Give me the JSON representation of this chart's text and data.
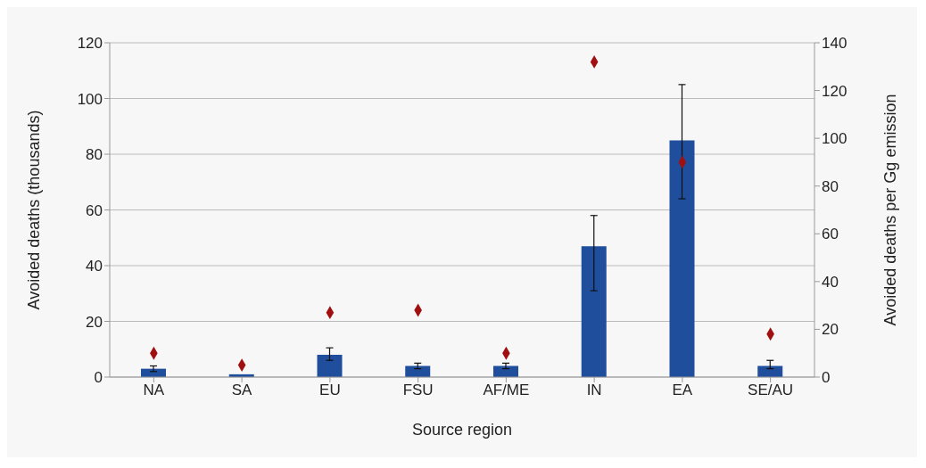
{
  "chart_data": {
    "type": "bar",
    "xlabel": "Source region",
    "ylabel": "Avoided deaths (thousands)",
    "y2label": "Avoided deaths per Gg emission",
    "categories": [
      "NA",
      "SA",
      "EU",
      "FSU",
      "AF/ME",
      "IN",
      "EA",
      "SE/AU"
    ],
    "series": [
      {
        "color": "#1f4e9c",
        "values": [
          3,
          1,
          8,
          4,
          4,
          47,
          85,
          4
        ],
        "errors": [
          [
            2,
            4
          ],
          null,
          [
            6,
            10.5
          ],
          [
            3,
            5
          ],
          [
            3,
            5
          ],
          [
            31,
            58
          ],
          [
            64,
            105
          ],
          [
            3,
            6
          ]
        ]
      },
      {
        "type": "scatter",
        "axis": "y2",
        "color": "#a01010",
        "marker": "diamond",
        "values": [
          10,
          5,
          27,
          28,
          10,
          132,
          90,
          18
        ]
      }
    ],
    "ylim": [
      0,
      120
    ],
    "yticks": [
      0,
      20,
      40,
      60,
      80,
      100,
      120
    ],
    "y2lim": [
      0,
      140
    ],
    "y2ticks": [
      0,
      20,
      40,
      60,
      80,
      100,
      120,
      140
    ],
    "grid": "y",
    "legend": false
  }
}
